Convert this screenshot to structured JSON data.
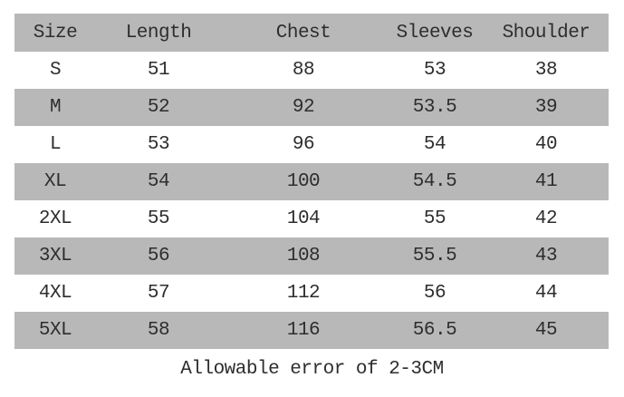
{
  "chart_data": {
    "type": "table",
    "columns": [
      "Size",
      "Length",
      "Chest",
      "Sleeves",
      "Shoulder"
    ],
    "rows": [
      [
        "S",
        51,
        88,
        53,
        38
      ],
      [
        "M",
        52,
        92,
        53.5,
        39
      ],
      [
        "L",
        53,
        96,
        54,
        40
      ],
      [
        "XL",
        54,
        100,
        54.5,
        41
      ],
      [
        "2XL",
        55,
        104,
        55,
        42
      ],
      [
        "3XL",
        56,
        108,
        55.5,
        43
      ],
      [
        "4XL",
        57,
        112,
        56,
        44
      ],
      [
        "5XL",
        58,
        116,
        56.5,
        45
      ]
    ],
    "note": "Allowable error of 2-3CM",
    "layout": {
      "striped": "header and alternate rows gray",
      "units": "CM"
    }
  },
  "colors": {
    "stripe_gray": "#b8b8b8",
    "row_white": "#ffffff",
    "text": "#2d2d2d",
    "page_background": "#ffffff"
  }
}
